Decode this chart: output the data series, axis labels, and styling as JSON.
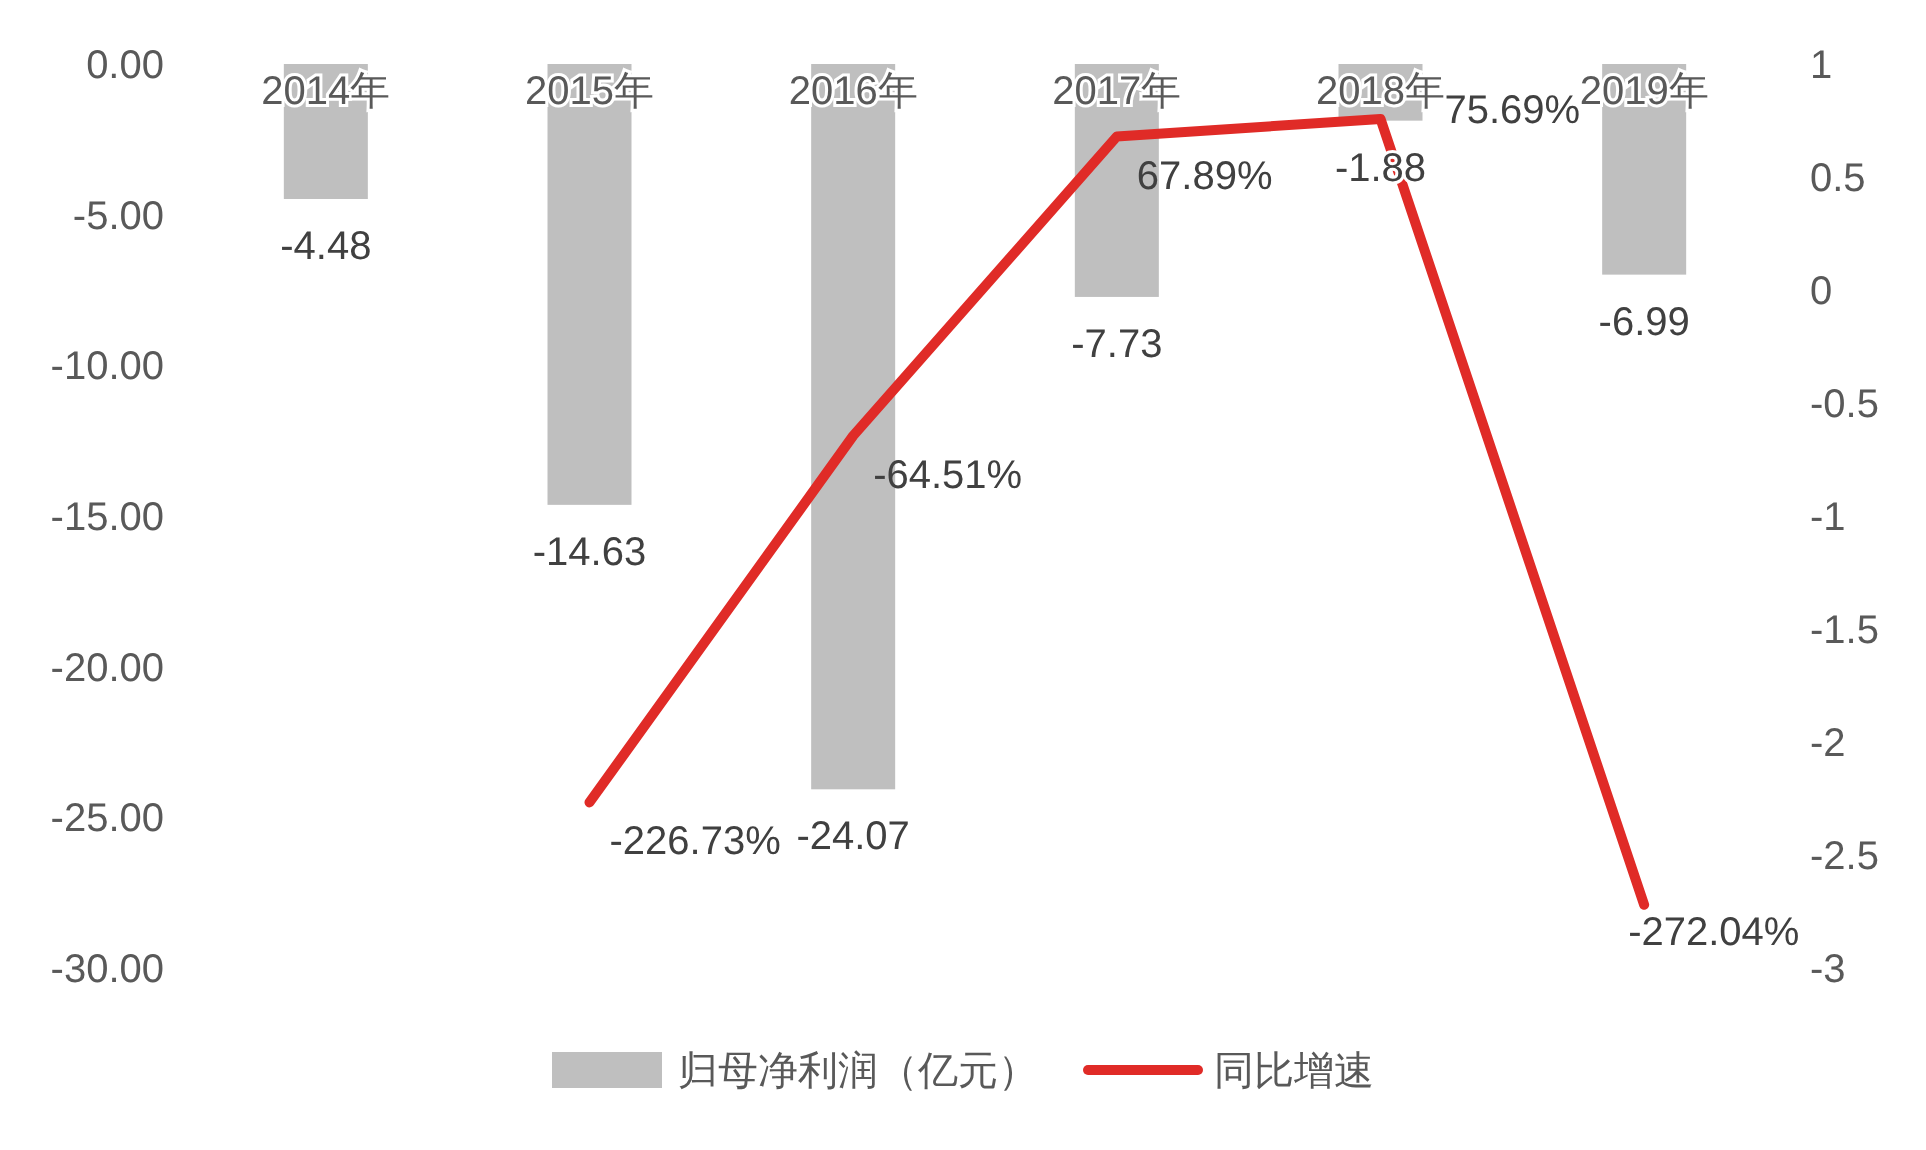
{
  "chart_data": {
    "type": "bar",
    "categories": [
      "2014年",
      "2015年",
      "2016年",
      "2017年",
      "2018年",
      "2019年"
    ],
    "series": [
      {
        "name": "归母净利润（亿元）",
        "color": "#bfbfbf",
        "values": [
          -4.48,
          -14.63,
          -24.07,
          -7.73,
          -1.88,
          -6.99
        ],
        "value_labels": [
          "-4.48",
          "-14.63",
          "-24.07",
          "-7.73",
          "-1.88",
          "-6.99"
        ]
      },
      {
        "name": "同比增速",
        "type": "line",
        "axis": "y2",
        "color": "#e02b27",
        "values": [
          null,
          -2.2673,
          -0.6451,
          0.6789,
          0.7569,
          -2.7204
        ],
        "value_labels": [
          null,
          "-226.73%",
          "-64.51%",
          "67.89%",
          "75.69%",
          "-272.04%"
        ]
      }
    ],
    "ylim": [
      -30,
      0
    ],
    "yticks": [
      {
        "value": 0,
        "label": "0.00"
      },
      {
        "value": -5,
        "label": "-5.00"
      },
      {
        "value": -10,
        "label": "-10.00"
      },
      {
        "value": -15,
        "label": "-15.00"
      },
      {
        "value": -20,
        "label": "-20.00"
      },
      {
        "value": -25,
        "label": "-25.00"
      },
      {
        "value": -30,
        "label": "-30.00"
      }
    ],
    "y2lim": [
      -3,
      1
    ],
    "y2ticks": [
      1,
      0.5,
      0,
      -0.5,
      -1,
      -1.5,
      -2,
      -2.5,
      -3
    ],
    "legend": "bottom"
  }
}
